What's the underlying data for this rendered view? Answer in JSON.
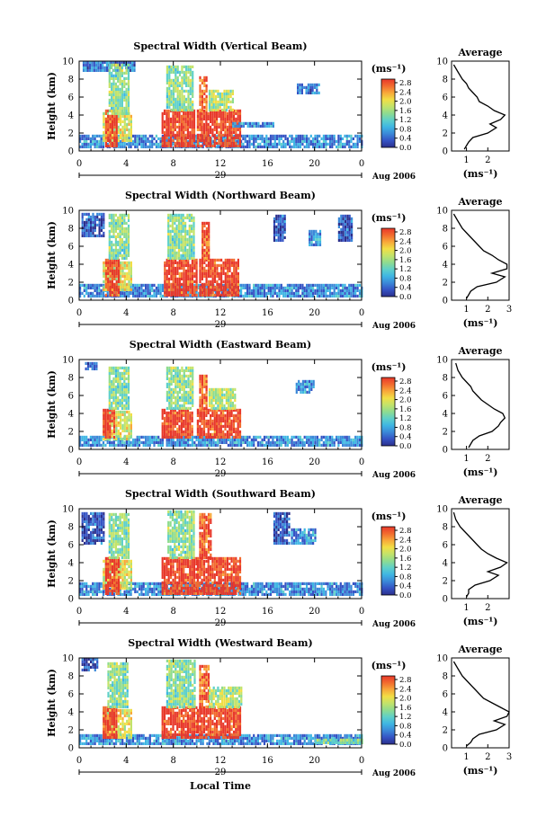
{
  "x_axis_title": "Local Time",
  "units_label": "(ms⁻¹)",
  "average_title": "Average",
  "average_xlabel": "(ms⁻¹)",
  "date_label": "Aug 2006",
  "day_label": "29",
  "colorbar_ticks": [
    "0.0",
    "0.4",
    "0.8",
    "1.2",
    "1.6",
    "2.0",
    "2.4",
    "2.8"
  ],
  "colormap": [
    "#2b2f8c",
    "#3553c4",
    "#3b88d8",
    "#3fb6e3",
    "#5fd0c9",
    "#8fdc8f",
    "#c3e36a",
    "#f2de45",
    "#f8a83a",
    "#f26b2f",
    "#e8382a"
  ],
  "chart_data": [
    {
      "type": "heatmap",
      "title": "Spectral Width (Vertical Beam)",
      "xlabel": "Local Time",
      "ylabel": "Height (km)",
      "xlim": [
        0,
        24
      ],
      "ylim": [
        0,
        10
      ],
      "x_ticks": [
        "0",
        "4",
        "8",
        "12",
        "16",
        "20",
        "0"
      ],
      "y_ticks": [
        "0",
        "2",
        "4",
        "6",
        "8",
        "10"
      ],
      "colorbar": {
        "label": "(ms⁻¹)",
        "range": [
          0.0,
          2.8
        ]
      },
      "regions": [
        {
          "t": [
            0.0,
            24.0
          ],
          "h": [
            0.3,
            1.6
          ],
          "v": 0.6
        },
        {
          "t": [
            0.3,
            4.8
          ],
          "h": [
            8.8,
            9.8
          ],
          "v": 0.5
        },
        {
          "t": [
            2.0,
            4.5
          ],
          "h": [
            1.0,
            4.0
          ],
          "v": 1.8
        },
        {
          "t": [
            2.2,
            3.2
          ],
          "h": [
            0.4,
            4.4
          ],
          "v": 2.8
        },
        {
          "t": [
            2.5,
            4.2
          ],
          "h": [
            4.0,
            9.5
          ],
          "v": 1.4
        },
        {
          "t": [
            7.0,
            9.8
          ],
          "h": [
            0.4,
            4.4
          ],
          "v": 2.8
        },
        {
          "t": [
            7.4,
            9.6
          ],
          "h": [
            4.4,
            9.5
          ],
          "v": 1.4
        },
        {
          "t": [
            10.0,
            13.6
          ],
          "h": [
            0.4,
            4.4
          ],
          "v": 2.8
        },
        {
          "t": [
            10.2,
            10.8
          ],
          "h": [
            4.4,
            8.2
          ],
          "v": 2.6
        },
        {
          "t": [
            11.0,
            13.0
          ],
          "h": [
            4.4,
            6.5
          ],
          "v": 1.6
        },
        {
          "t": [
            18.5,
            20.3
          ],
          "h": [
            6.3,
            7.2
          ],
          "v": 0.5
        },
        {
          "t": [
            13.0,
            16.5
          ],
          "h": [
            2.6,
            3.0
          ],
          "v": 0.6
        }
      ]
    },
    {
      "type": "heatmap",
      "title": "Spectral Width (Northward Beam)",
      "xlabel": "Local Time",
      "ylabel": "Height (km)",
      "xlim": [
        0,
        24
      ],
      "ylim": [
        0,
        10
      ],
      "x_ticks": [
        "0",
        "4",
        "8",
        "12",
        "16",
        "20",
        "0"
      ],
      "y_ticks": [
        "0",
        "2",
        "4",
        "6",
        "8",
        "10"
      ],
      "colorbar": {
        "label": "(ms⁻¹)",
        "range": [
          0.0,
          2.8
        ]
      },
      "regions": [
        {
          "t": [
            0.0,
            24.0
          ],
          "h": [
            0.3,
            1.6
          ],
          "v": 0.6
        },
        {
          "t": [
            0.2,
            2.0
          ],
          "h": [
            7.0,
            9.6
          ],
          "v": 0.3
        },
        {
          "t": [
            2.0,
            4.5
          ],
          "h": [
            1.0,
            4.0
          ],
          "v": 1.8
        },
        {
          "t": [
            2.2,
            3.4
          ],
          "h": [
            0.4,
            4.5
          ],
          "v": 2.8
        },
        {
          "t": [
            2.5,
            4.2
          ],
          "h": [
            4.5,
            9.5
          ],
          "v": 1.4
        },
        {
          "t": [
            7.2,
            10.0
          ],
          "h": [
            0.4,
            4.5
          ],
          "v": 2.8
        },
        {
          "t": [
            7.5,
            9.8
          ],
          "h": [
            4.5,
            9.5
          ],
          "v": 1.4
        },
        {
          "t": [
            10.2,
            13.6
          ],
          "h": [
            0.4,
            4.5
          ],
          "v": 2.8
        },
        {
          "t": [
            10.4,
            11.0
          ],
          "h": [
            4.5,
            8.5
          ],
          "v": 2.6
        },
        {
          "t": [
            16.5,
            17.5
          ],
          "h": [
            6.5,
            9.5
          ],
          "v": 0.3
        },
        {
          "t": [
            19.5,
            20.5
          ],
          "h": [
            6.0,
            7.5
          ],
          "v": 0.7
        },
        {
          "t": [
            22.0,
            23.2
          ],
          "h": [
            6.5,
            9.5
          ],
          "v": 0.3
        }
      ]
    },
    {
      "type": "heatmap",
      "title": "Spectral Width (Eastward Beam)",
      "xlabel": "Local Time",
      "ylabel": "Height (km)",
      "xlim": [
        0,
        24
      ],
      "ylim": [
        0,
        10
      ],
      "x_ticks": [
        "0",
        "4",
        "8",
        "12",
        "16",
        "20",
        "0"
      ],
      "y_ticks": [
        "0",
        "2",
        "4",
        "6",
        "8",
        "10"
      ],
      "colorbar": {
        "label": "(ms⁻¹)",
        "range": [
          0.0,
          2.8
        ]
      },
      "regions": [
        {
          "t": [
            0.0,
            24.0
          ],
          "h": [
            0.3,
            1.4
          ],
          "v": 0.6
        },
        {
          "t": [
            0.5,
            1.5
          ],
          "h": [
            8.8,
            9.6
          ],
          "v": 0.3
        },
        {
          "t": [
            2.0,
            4.5
          ],
          "h": [
            1.0,
            4.0
          ],
          "v": 1.8
        },
        {
          "t": [
            2.0,
            3.0
          ],
          "h": [
            1.2,
            4.4
          ],
          "v": 2.8
        },
        {
          "t": [
            2.5,
            4.2
          ],
          "h": [
            4.4,
            9.0
          ],
          "v": 1.4
        },
        {
          "t": [
            7.0,
            9.6
          ],
          "h": [
            1.2,
            4.4
          ],
          "v": 2.8
        },
        {
          "t": [
            7.4,
            9.6
          ],
          "h": [
            4.4,
            9.2
          ],
          "v": 1.4
        },
        {
          "t": [
            10.0,
            13.6
          ],
          "h": [
            1.2,
            4.4
          ],
          "v": 2.8
        },
        {
          "t": [
            10.2,
            10.8
          ],
          "h": [
            4.4,
            8.0
          ],
          "v": 2.6
        },
        {
          "t": [
            11.0,
            13.2
          ],
          "h": [
            4.4,
            6.5
          ],
          "v": 1.6
        },
        {
          "t": [
            18.4,
            20.0
          ],
          "h": [
            6.2,
            7.6
          ],
          "v": 0.6
        }
      ]
    },
    {
      "type": "heatmap",
      "title": "Spectral Width (Southward Beam)",
      "xlabel": "Local Time",
      "ylabel": "Height (km)",
      "xlim": [
        0,
        24
      ],
      "ylim": [
        0,
        10
      ],
      "x_ticks": [
        "0",
        "4",
        "8",
        "12",
        "16",
        "20",
        "0"
      ],
      "y_ticks": [
        "0",
        "2",
        "4",
        "6",
        "8",
        "10"
      ],
      "colorbar": {
        "label": "(ms⁻¹)",
        "range": [
          0.0,
          2.8
        ]
      },
      "regions": [
        {
          "t": [
            0.0,
            24.0
          ],
          "h": [
            0.3,
            1.6
          ],
          "v": 0.6
        },
        {
          "t": [
            0.2,
            2.0
          ],
          "h": [
            6.0,
            9.6
          ],
          "v": 0.3
        },
        {
          "t": [
            2.0,
            4.5
          ],
          "h": [
            1.0,
            4.0
          ],
          "v": 1.8
        },
        {
          "t": [
            2.2,
            3.4
          ],
          "h": [
            0.4,
            4.4
          ],
          "v": 2.8
        },
        {
          "t": [
            2.5,
            4.2
          ],
          "h": [
            4.4,
            9.4
          ],
          "v": 1.4
        },
        {
          "t": [
            7.0,
            10.0
          ],
          "h": [
            0.4,
            4.4
          ],
          "v": 2.8
        },
        {
          "t": [
            7.5,
            9.8
          ],
          "h": [
            4.4,
            9.6
          ],
          "v": 1.4
        },
        {
          "t": [
            10.0,
            13.6
          ],
          "h": [
            0.4,
            4.4
          ],
          "v": 2.8
        },
        {
          "t": [
            10.2,
            11.2
          ],
          "h": [
            4.4,
            9.5
          ],
          "v": 2.6
        },
        {
          "t": [
            16.5,
            17.8
          ],
          "h": [
            6.0,
            9.6
          ],
          "v": 0.3
        },
        {
          "t": [
            18.0,
            20.0
          ],
          "h": [
            6.0,
            7.5
          ],
          "v": 0.6
        }
      ]
    },
    {
      "type": "heatmap",
      "title": "Spectral Width (Westward Beam)",
      "xlabel": "Local Time",
      "ylabel": "Height (km)",
      "xlim": [
        0,
        24
      ],
      "ylim": [
        0,
        10
      ],
      "x_ticks": [
        "0",
        "4",
        "8",
        "12",
        "16",
        "20",
        "0"
      ],
      "y_ticks": [
        "0",
        "2",
        "4",
        "6",
        "8",
        "10"
      ],
      "colorbar": {
        "label": "(ms⁻¹)",
        "range": [
          0.0,
          2.8
        ]
      },
      "regions": [
        {
          "t": [
            0.0,
            24.0
          ],
          "h": [
            0.3,
            1.4
          ],
          "v": 0.6
        },
        {
          "t": [
            0.2,
            1.5
          ],
          "h": [
            8.5,
            9.8
          ],
          "v": 0.3
        },
        {
          "t": [
            2.0,
            4.5
          ],
          "h": [
            1.0,
            4.0
          ],
          "v": 1.8
        },
        {
          "t": [
            2.0,
            3.2
          ],
          "h": [
            1.0,
            4.4
          ],
          "v": 2.8
        },
        {
          "t": [
            2.4,
            4.2
          ],
          "h": [
            4.4,
            9.4
          ],
          "v": 1.4
        },
        {
          "t": [
            7.0,
            10.0
          ],
          "h": [
            1.0,
            4.4
          ],
          "v": 2.8
        },
        {
          "t": [
            7.4,
            9.8
          ],
          "h": [
            4.4,
            9.6
          ],
          "v": 1.4
        },
        {
          "t": [
            10.0,
            13.6
          ],
          "h": [
            1.0,
            4.4
          ],
          "v": 2.8
        },
        {
          "t": [
            10.2,
            11.0
          ],
          "h": [
            4.4,
            9.0
          ],
          "v": 2.6
        },
        {
          "t": [
            11.0,
            13.8
          ],
          "h": [
            4.4,
            6.5
          ],
          "v": 1.6
        },
        {
          "t": [
            20.0,
            24.0
          ],
          "h": [
            0.4,
            1.0
          ],
          "v": 1.4
        }
      ]
    },
    {
      "type": "line",
      "title": "Average",
      "xlabel": "(ms⁻¹)",
      "xlim": [
        0.3,
        3.0
      ],
      "ylim": [
        0,
        10
      ],
      "x_ticks": [
        1,
        2
      ],
      "y_ticks": [
        0,
        2,
        4,
        6,
        8,
        10
      ],
      "x": [
        0.9,
        1.0,
        1.1,
        1.3,
        2.0,
        2.4,
        2.1,
        2.6,
        2.8,
        2.3,
        2.0,
        1.6,
        1.5,
        1.3,
        1.1,
        1.0,
        0.8,
        0.6,
        0.4
      ],
      "y": [
        0.2,
        0.6,
        1.0,
        1.5,
        2.0,
        2.6,
        3.0,
        3.5,
        4.0,
        4.5,
        5.0,
        5.5,
        6.0,
        6.5,
        7.0,
        7.5,
        8.0,
        8.8,
        9.6
      ]
    },
    {
      "type": "line",
      "title": "Average",
      "xlabel": "(ms⁻¹)",
      "xlim": [
        0.3,
        3.0
      ],
      "ylim": [
        0,
        10
      ],
      "x_ticks": [
        1,
        2,
        3
      ],
      "y_ticks": [
        0,
        2,
        4,
        6,
        8,
        10
      ],
      "x": [
        1.0,
        1.1,
        1.2,
        1.5,
        2.4,
        2.8,
        2.2,
        2.9,
        2.9,
        2.5,
        2.2,
        1.8,
        1.6,
        1.4,
        1.2,
        1.0,
        0.8,
        0.6,
        0.4
      ],
      "y": [
        0.2,
        0.6,
        1.0,
        1.5,
        2.0,
        2.6,
        3.0,
        3.5,
        4.0,
        4.5,
        5.0,
        5.5,
        6.0,
        6.5,
        7.0,
        7.5,
        8.0,
        8.8,
        9.6
      ]
    },
    {
      "type": "line",
      "title": "Average",
      "xlabel": "(ms⁻¹)",
      "xlim": [
        0.3,
        3.0
      ],
      "ylim": [
        0,
        10
      ],
      "x_ticks": [
        1,
        2
      ],
      "y_ticks": [
        0,
        2,
        4,
        6,
        8,
        10
      ],
      "x": [
        1.1,
        1.2,
        1.3,
        1.6,
        2.2,
        2.5,
        2.6,
        2.8,
        2.7,
        2.3,
        2.0,
        1.7,
        1.5,
        1.3,
        1.2,
        1.0,
        0.8,
        0.6,
        0.5
      ],
      "y": [
        0.2,
        0.6,
        1.0,
        1.5,
        2.0,
        2.6,
        3.0,
        3.5,
        4.0,
        4.5,
        5.0,
        5.5,
        6.0,
        6.5,
        7.0,
        7.5,
        8.0,
        8.8,
        9.6
      ]
    },
    {
      "type": "line",
      "title": "Average",
      "xlabel": "(ms⁻¹)",
      "xlim": [
        0.3,
        3.0
      ],
      "ylim": [
        0,
        10
      ],
      "x_ticks": [
        1,
        2
      ],
      "y_ticks": [
        0,
        2,
        4,
        6,
        8,
        10
      ],
      "x": [
        1.0,
        1.1,
        1.1,
        1.4,
        2.1,
        2.5,
        2.0,
        2.6,
        2.9,
        2.4,
        2.0,
        1.7,
        1.5,
        1.3,
        1.1,
        0.9,
        0.7,
        0.5,
        0.4
      ],
      "y": [
        0.2,
        0.6,
        1.0,
        1.5,
        2.0,
        2.6,
        3.0,
        3.5,
        4.0,
        4.5,
        5.0,
        5.5,
        6.0,
        6.5,
        7.0,
        7.5,
        8.0,
        8.8,
        9.6
      ]
    },
    {
      "type": "line",
      "title": "Average",
      "xlabel": "(ms⁻¹)",
      "xlim": [
        0.3,
        3.0
      ],
      "ylim": [
        0,
        10
      ],
      "x_ticks": [
        1,
        2,
        3
      ],
      "y_ticks": [
        0,
        2,
        4,
        6,
        8,
        10
      ],
      "x": [
        1.0,
        1.2,
        1.3,
        1.6,
        2.4,
        2.8,
        2.3,
        2.9,
        3.0,
        2.6,
        2.2,
        1.8,
        1.6,
        1.4,
        1.2,
        1.0,
        0.8,
        0.6,
        0.4
      ],
      "y": [
        0.2,
        0.6,
        1.0,
        1.5,
        2.0,
        2.6,
        3.0,
        3.5,
        4.0,
        4.5,
        5.0,
        5.5,
        6.0,
        6.5,
        7.0,
        7.5,
        8.0,
        8.8,
        9.6
      ]
    }
  ]
}
